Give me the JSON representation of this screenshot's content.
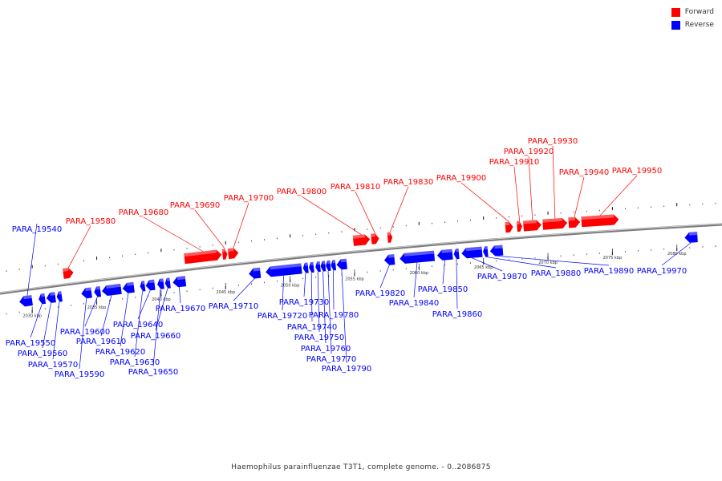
{
  "title": "Haemophilus parainfluenzae T3T1, complete genome. - 0..2086875",
  "legend": [
    {
      "label": "Forward",
      "color": "#ff0000"
    },
    {
      "label": "Reverse",
      "color": "#0000ff"
    }
  ],
  "colors": {
    "forward": "#ff0000",
    "reverse": "#0000ff",
    "backbone": "#7a7a7a"
  },
  "ticks": [
    {
      "kbp": 2030,
      "label": "2030 kbp"
    },
    {
      "kbp": 2035,
      "label": "2035 kbp"
    },
    {
      "kbp": 2040,
      "label": "2040 kbp"
    },
    {
      "kbp": 2045,
      "label": "2045 kbp"
    },
    {
      "kbp": 2050,
      "label": "2050 kbp"
    },
    {
      "kbp": 2055,
      "label": "2055 kbp"
    },
    {
      "kbp": 2060,
      "label": "2060 kbp"
    },
    {
      "kbp": 2065,
      "label": "2065 kbp"
    },
    {
      "kbp": 2070,
      "label": "2070 kbp"
    },
    {
      "kbp": 2075,
      "label": "2075 kbp"
    },
    {
      "kbp": 2080,
      "label": "2080 kbp"
    }
  ],
  "genes": [
    {
      "id": "PARA_19540",
      "strand": "reverse",
      "start": 2029.0,
      "end": 2030.0
    },
    {
      "id": "PARA_19550",
      "strand": "reverse",
      "start": 2030.5,
      "end": 2031.0
    },
    {
      "id": "PARA_19560",
      "strand": "reverse",
      "start": 2031.1,
      "end": 2031.8
    },
    {
      "id": "PARA_19570",
      "strand": "reverse",
      "start": 2031.9,
      "end": 2032.3
    },
    {
      "id": "PARA_19580",
      "strand": "forward",
      "start": 2032.4,
      "end": 2033.2
    },
    {
      "id": "PARA_19590",
      "strand": "reverse",
      "start": 2033.8,
      "end": 2034.6
    },
    {
      "id": "PARA_19600",
      "strand": "reverse",
      "start": 2034.8,
      "end": 2035.3
    },
    {
      "id": "PARA_19610",
      "strand": "reverse",
      "start": 2035.4,
      "end": 2036.9
    },
    {
      "id": "PARA_19620",
      "strand": "reverse",
      "start": 2037.0,
      "end": 2037.9
    },
    {
      "id": "PARA_19630",
      "strand": "reverse",
      "start": 2038.4,
      "end": 2038.7
    },
    {
      "id": "PARA_19640",
      "strand": "reverse",
      "start": 2038.8,
      "end": 2039.5
    },
    {
      "id": "PARA_19650",
      "strand": "reverse",
      "start": 2039.7,
      "end": 2040.2
    },
    {
      "id": "PARA_19660",
      "strand": "reverse",
      "start": 2040.3,
      "end": 2040.7
    },
    {
      "id": "PARA_19670",
      "strand": "reverse",
      "start": 2040.9,
      "end": 2041.9
    },
    {
      "id": "PARA_19680",
      "strand": "forward",
      "start": 2041.8,
      "end": 2044.7
    },
    {
      "id": "PARA_19690",
      "strand": "forward",
      "start": 2044.8,
      "end": 2045.1
    },
    {
      "id": "PARA_19700",
      "strand": "forward",
      "start": 2045.2,
      "end": 2046.0
    },
    {
      "id": "PARA_19710",
      "strand": "reverse",
      "start": 2046.8,
      "end": 2047.7
    },
    {
      "id": "PARA_19720",
      "strand": "reverse",
      "start": 2048.1,
      "end": 2050.9
    },
    {
      "id": "PARA_19730",
      "strand": "reverse",
      "start": 2051.0,
      "end": 2051.4
    },
    {
      "id": "PARA_19740",
      "strand": "reverse",
      "start": 2051.5,
      "end": 2051.8
    },
    {
      "id": "PARA_19750",
      "strand": "reverse",
      "start": 2052.0,
      "end": 2052.3
    },
    {
      "id": "PARA_19760",
      "strand": "reverse",
      "start": 2052.4,
      "end": 2052.7
    },
    {
      "id": "PARA_19770",
      "strand": "reverse",
      "start": 2052.8,
      "end": 2053.1
    },
    {
      "id": "PARA_19780",
      "strand": "reverse",
      "start": 2053.2,
      "end": 2053.5
    },
    {
      "id": "PARA_19790",
      "strand": "reverse",
      "start": 2053.6,
      "end": 2054.4
    },
    {
      "id": "PARA_19800",
      "strand": "forward",
      "start": 2054.9,
      "end": 2056.2
    },
    {
      "id": "PARA_19810",
      "strand": "forward",
      "start": 2056.3,
      "end": 2056.9
    },
    {
      "id": "PARA_19820",
      "strand": "reverse",
      "start": 2057.3,
      "end": 2058.1
    },
    {
      "id": "PARA_19830",
      "strand": "forward",
      "start": 2057.6,
      "end": 2057.9
    },
    {
      "id": "PARA_19840",
      "strand": "reverse",
      "start": 2058.5,
      "end": 2061.2
    },
    {
      "id": "PARA_19850",
      "strand": "reverse",
      "start": 2061.4,
      "end": 2062.6
    },
    {
      "id": "PARA_19860",
      "strand": "reverse",
      "start": 2062.7,
      "end": 2063.1
    },
    {
      "id": "PARA_19870",
      "strand": "reverse",
      "start": 2063.3,
      "end": 2064.9
    },
    {
      "id": "PARA_19880",
      "strand": "reverse",
      "start": 2065.0,
      "end": 2065.3
    },
    {
      "id": "PARA_19890",
      "strand": "reverse",
      "start": 2065.5,
      "end": 2066.5
    },
    {
      "id": "PARA_19900",
      "strand": "forward",
      "start": 2066.7,
      "end": 2067.3
    },
    {
      "id": "PARA_19910",
      "strand": "forward",
      "start": 2067.6,
      "end": 2068.0
    },
    {
      "id": "PARA_19920",
      "strand": "forward",
      "start": 2068.1,
      "end": 2069.5
    },
    {
      "id": "PARA_19930",
      "strand": "forward",
      "start": 2069.6,
      "end": 2071.5
    },
    {
      "id": "PARA_19940",
      "strand": "forward",
      "start": 2071.6,
      "end": 2072.5
    },
    {
      "id": "PARA_19950",
      "strand": "forward",
      "start": 2072.6,
      "end": 2075.5
    },
    {
      "id": "PARA_19970",
      "strand": "reverse",
      "start": 2080.6,
      "end": 2081.6
    }
  ]
}
